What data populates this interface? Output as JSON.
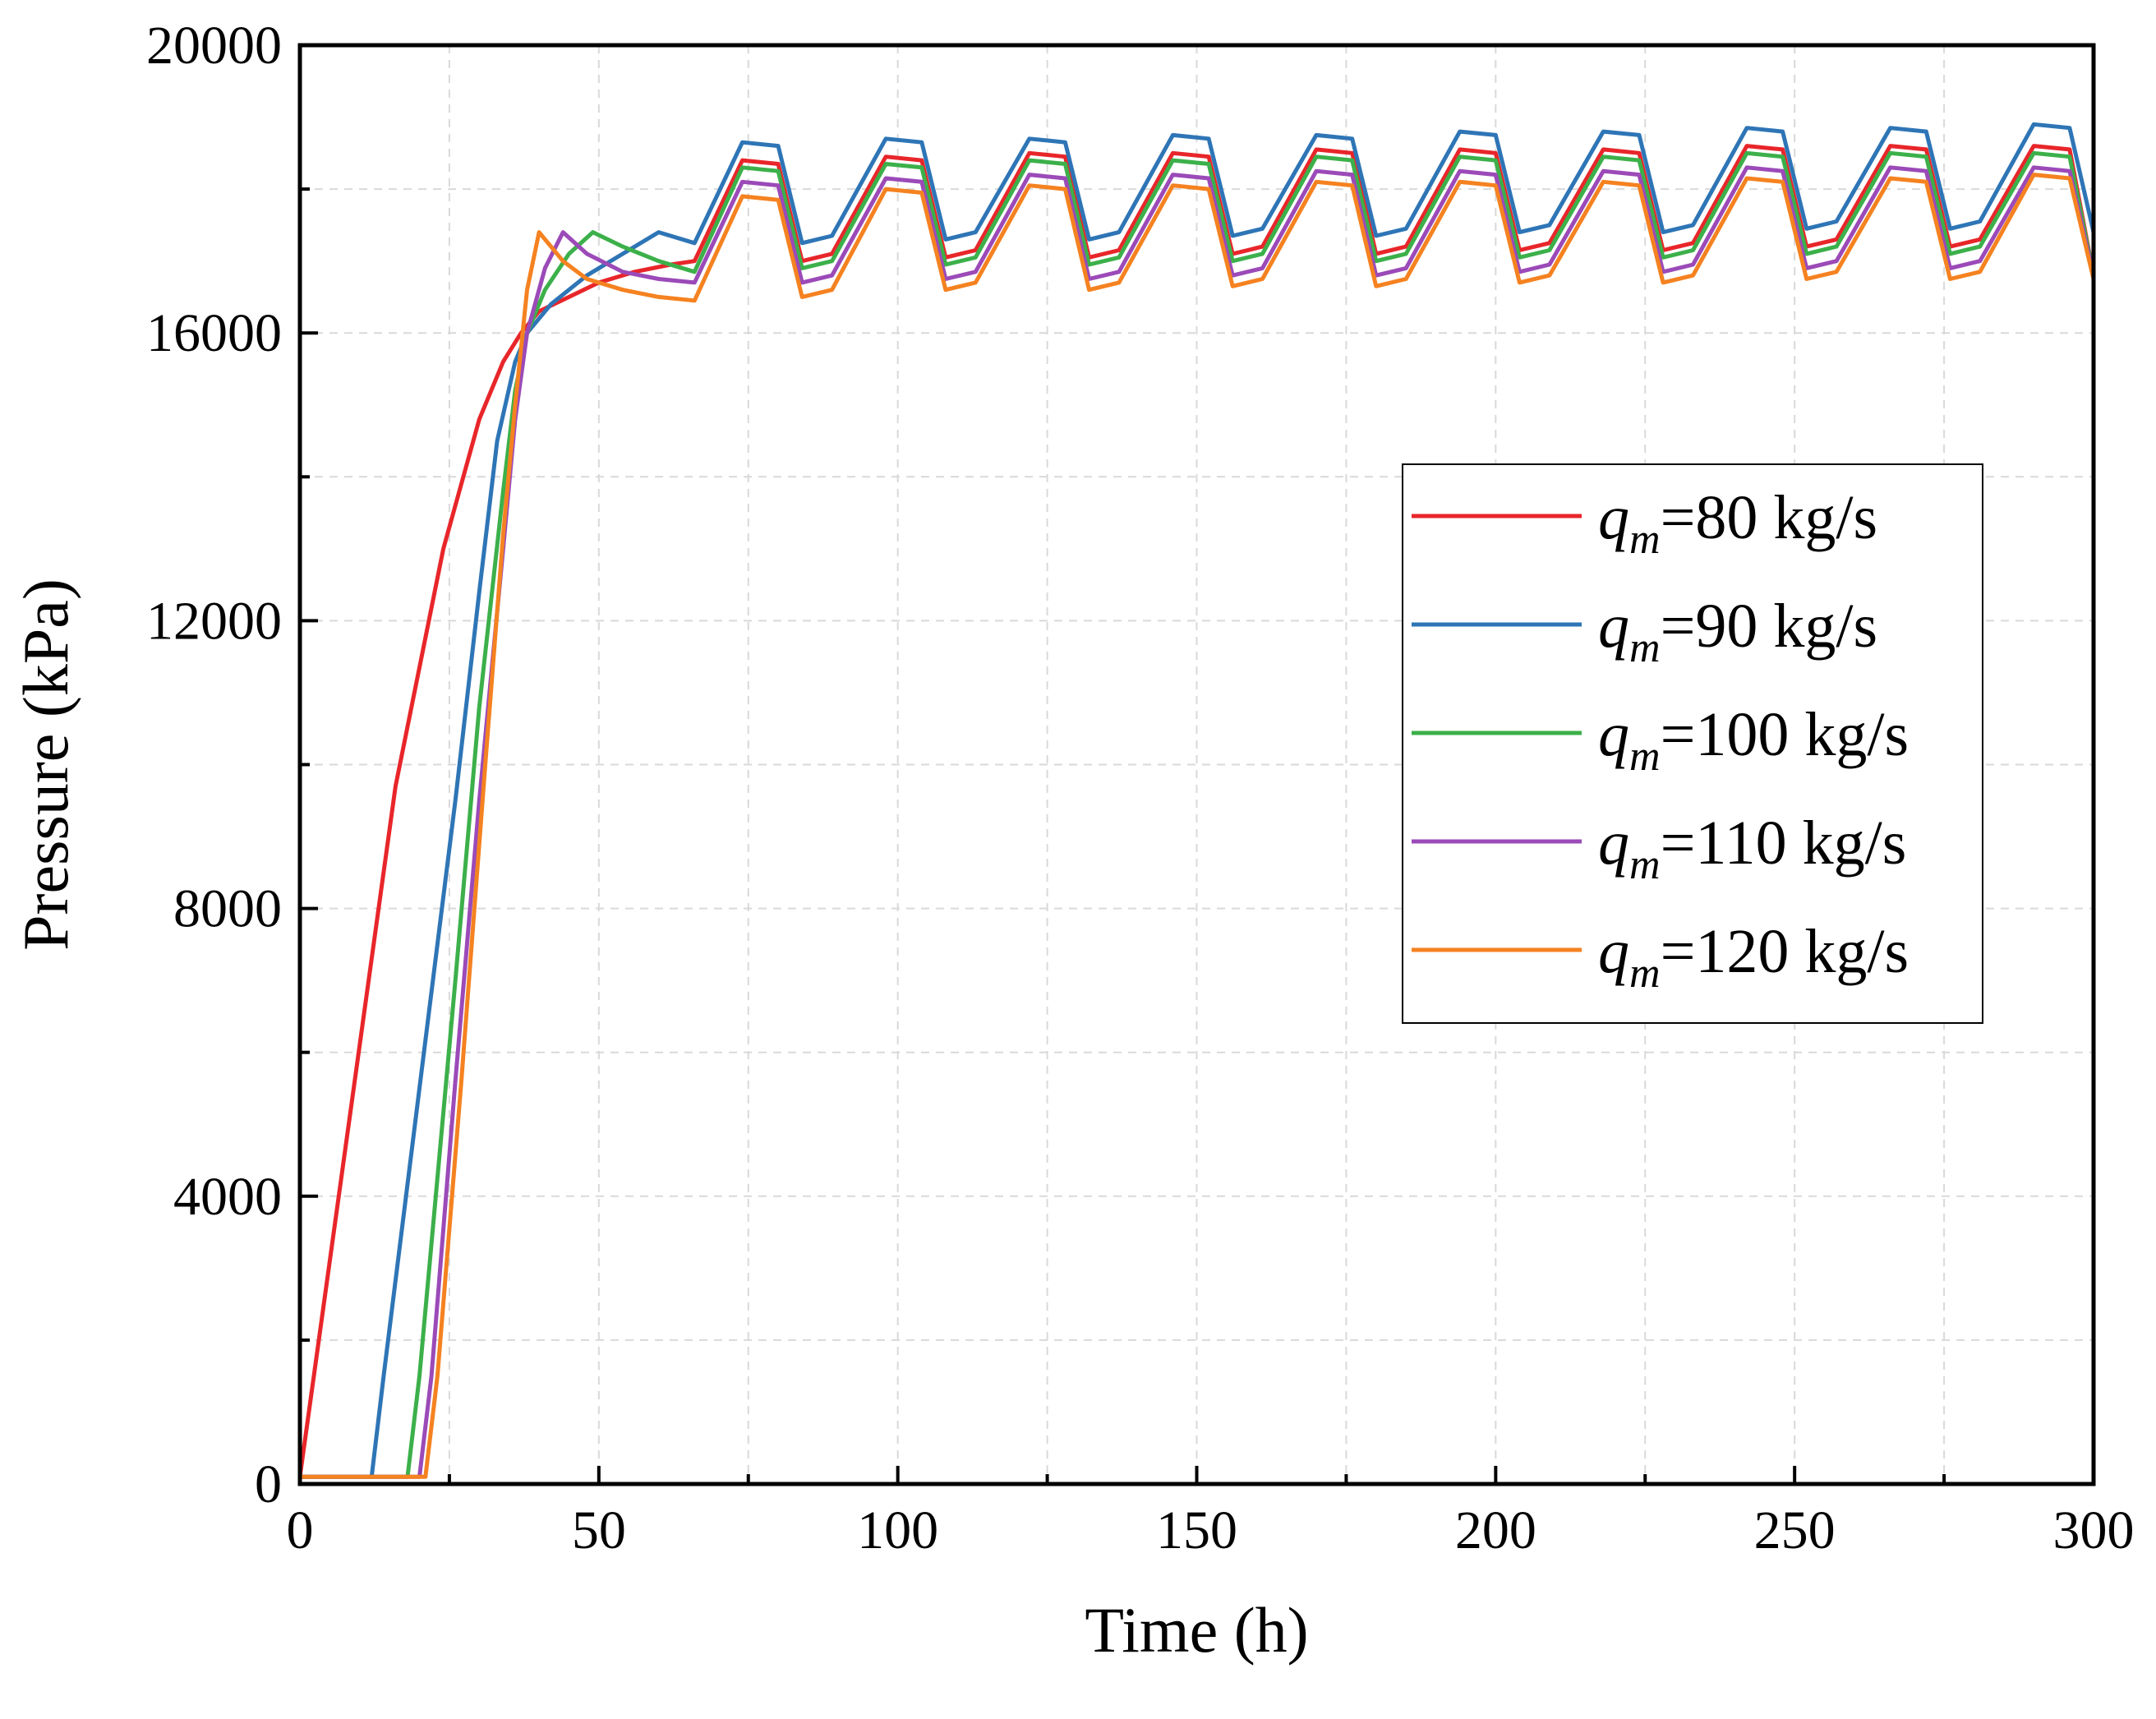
{
  "chart_data": {
    "type": "line",
    "title": "",
    "xlabel": "Time (h)",
    "ylabel": "Pressure (kPa)",
    "xlim": [
      0,
      300
    ],
    "ylim": [
      0,
      20000
    ],
    "xticks": [
      "0",
      "50",
      "100",
      "150",
      "200",
      "250",
      "300"
    ],
    "yticks": [
      "0",
      "4000",
      "8000",
      "12000",
      "16000",
      "20000"
    ],
    "grid": true,
    "legend_position": "right-middle",
    "legend_prefix": "q",
    "legend_subscript": "m",
    "series": [
      {
        "name": "qm=80 kg/s",
        "label_rest": "=80 kg/s",
        "color": "#e8262a",
        "x": [
          0,
          8,
          16,
          24,
          30,
          34,
          37,
          40,
          45,
          50,
          56,
          62,
          66,
          74,
          80,
          84,
          89,
          98,
          104,
          108,
          113,
          122,
          128,
          132,
          137,
          146,
          152,
          156,
          161,
          170,
          176,
          180,
          185,
          194,
          200,
          204,
          209,
          218,
          224,
          228,
          233,
          242,
          248,
          252,
          257,
          266,
          272,
          276,
          281,
          290,
          296,
          300
        ],
        "y": [
          100,
          4900,
          9700,
          13000,
          14800,
          15600,
          16000,
          16300,
          16500,
          16700,
          16850,
          16950,
          17000,
          18400,
          18350,
          17000,
          17100,
          18450,
          18400,
          17050,
          17150,
          18500,
          18450,
          17050,
          17150,
          18500,
          18450,
          17100,
          17200,
          18550,
          18500,
          17100,
          17200,
          18550,
          18500,
          17150,
          17250,
          18550,
          18500,
          17150,
          17250,
          18600,
          18550,
          17200,
          17300,
          18600,
          18550,
          17200,
          17300,
          18600,
          18550,
          16800
        ]
      },
      {
        "name": "qm=90 kg/s",
        "label_rest": "=90 kg/s",
        "color": "#2e75b6",
        "x": [
          0,
          12,
          14,
          20,
          26,
          30,
          33,
          36,
          38,
          42,
          48,
          54,
          60,
          66,
          74,
          80,
          84,
          89,
          98,
          104,
          108,
          113,
          122,
          128,
          132,
          137,
          146,
          152,
          156,
          161,
          170,
          176,
          180,
          185,
          194,
          200,
          204,
          209,
          218,
          224,
          228,
          233,
          242,
          248,
          252,
          257,
          266,
          272,
          276,
          281,
          290,
          296,
          300
        ],
        "y": [
          100,
          100,
          1500,
          5500,
          9500,
          12400,
          14500,
          15600,
          16000,
          16400,
          16800,
          17100,
          17400,
          17250,
          18650,
          18600,
          17250,
          17350,
          18700,
          18650,
          17300,
          17400,
          18700,
          18650,
          17300,
          17400,
          18750,
          18700,
          17350,
          17450,
          18750,
          18700,
          17350,
          17450,
          18800,
          18750,
          17400,
          17500,
          18800,
          18750,
          17400,
          17500,
          18850,
          18800,
          17450,
          17550,
          18850,
          18800,
          17450,
          17550,
          18900,
          18850,
          17400
        ]
      },
      {
        "name": "qm=100 kg/s",
        "label_rest": "=100 kg/s",
        "color": "#3cb04a",
        "x": [
          0,
          18,
          20,
          26,
          30,
          34,
          36,
          38,
          41,
          45,
          49,
          54,
          60,
          66,
          74,
          80,
          84,
          89,
          98,
          104,
          108,
          113,
          122,
          128,
          132,
          137,
          146,
          152,
          156,
          161,
          170,
          176,
          180,
          185,
          194,
          200,
          204,
          209,
          218,
          224,
          228,
          233,
          242,
          248,
          252,
          257,
          266,
          272,
          276,
          281,
          290,
          296,
          300
        ],
        "y": [
          100,
          100,
          1500,
          7000,
          10800,
          13800,
          15200,
          16000,
          16600,
          17100,
          17400,
          17200,
          17000,
          16850,
          18300,
          18250,
          16900,
          17000,
          18350,
          18300,
          16950,
          17050,
          18400,
          18350,
          16950,
          17050,
          18400,
          18350,
          17000,
          17100,
          18450,
          18400,
          17000,
          17100,
          18450,
          18400,
          17050,
          17150,
          18450,
          18400,
          17050,
          17150,
          18500,
          18450,
          17100,
          17200,
          18500,
          18450,
          17100,
          17200,
          18500,
          18450,
          16800
        ]
      },
      {
        "name": "qm=110 kg/s",
        "label_rest": "=110 kg/s",
        "color": "#9b4ab8",
        "x": [
          0,
          20,
          22,
          26,
          30,
          34,
          36,
          38,
          41,
          44,
          48,
          54,
          60,
          66,
          74,
          80,
          84,
          89,
          98,
          104,
          108,
          113,
          122,
          128,
          132,
          137,
          146,
          152,
          156,
          161,
          170,
          176,
          180,
          185,
          194,
          200,
          204,
          209,
          218,
          224,
          228,
          233,
          242,
          248,
          252,
          257,
          266,
          272,
          276,
          281,
          290,
          296,
          300
        ],
        "y": [
          100,
          100,
          1500,
          5600,
          9500,
          13000,
          14800,
          16000,
          16900,
          17400,
          17100,
          16850,
          16750,
          16700,
          18100,
          18050,
          16700,
          16800,
          18150,
          18100,
          16750,
          16850,
          18200,
          18150,
          16750,
          16850,
          18200,
          18150,
          16800,
          16900,
          18250,
          18200,
          16800,
          16900,
          18250,
          18200,
          16850,
          16950,
          18250,
          18200,
          16850,
          16950,
          18300,
          18250,
          16900,
          17000,
          18300,
          18250,
          16900,
          17000,
          18300,
          18250,
          16800
        ]
      },
      {
        "name": "qm=120 kg/s",
        "label_rest": "=120 kg/s",
        "color": "#f58220",
        "x": [
          0,
          21,
          23,
          27,
          31,
          34,
          36,
          38,
          40,
          44,
          48,
          54,
          60,
          66,
          74,
          80,
          84,
          89,
          98,
          104,
          108,
          113,
          122,
          128,
          132,
          137,
          146,
          152,
          156,
          161,
          170,
          176,
          180,
          185,
          194,
          200,
          204,
          209,
          218,
          224,
          228,
          233,
          242,
          248,
          252,
          257,
          266,
          272,
          276,
          281,
          290,
          296,
          300
        ],
        "y": [
          100,
          100,
          1500,
          5600,
          10000,
          13200,
          15000,
          16600,
          17400,
          17000,
          16750,
          16600,
          16500,
          16450,
          17900,
          17850,
          16500,
          16600,
          18000,
          17950,
          16600,
          16700,
          18050,
          18000,
          16600,
          16700,
          18050,
          18000,
          16650,
          16750,
          18100,
          18050,
          16650,
          16750,
          18100,
          18050,
          16700,
          16800,
          18100,
          18050,
          16700,
          16800,
          18150,
          18100,
          16750,
          16850,
          18150,
          18100,
          16750,
          16850,
          18200,
          18150,
          16750
        ]
      }
    ]
  }
}
